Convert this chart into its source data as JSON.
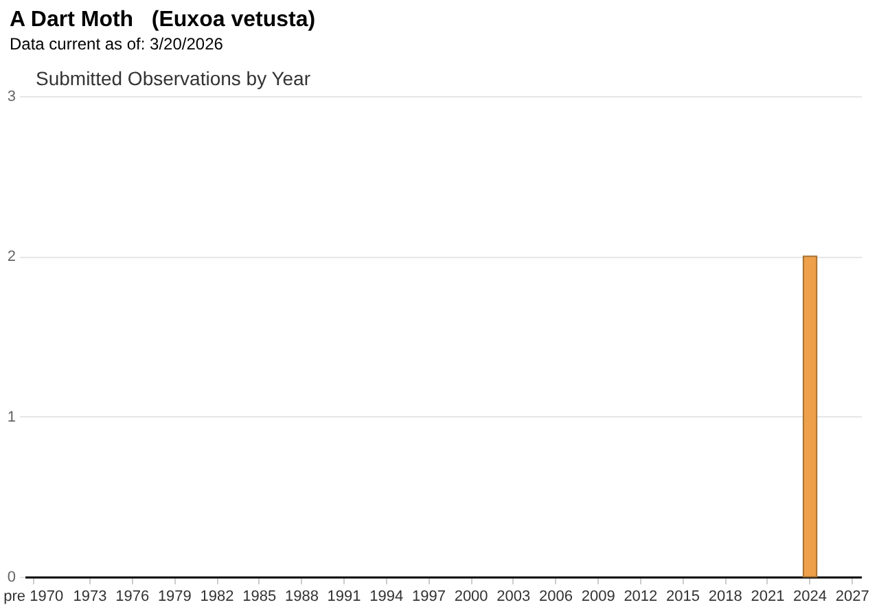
{
  "chart_data": {
    "type": "bar",
    "title": "A Dart Moth   (Euxoa vetusta)",
    "subtitle": "Data current as of: 3/20/2026",
    "annotations": [
      "Submitted Observations by Year"
    ],
    "categories": [
      "pre 1970",
      null,
      null,
      null,
      "1973",
      null,
      null,
      "1976",
      null,
      null,
      "1979",
      null,
      null,
      "1982",
      null,
      null,
      "1985",
      null,
      null,
      "1988",
      null,
      null,
      "1991",
      null,
      null,
      "1994",
      null,
      null,
      "1997",
      null,
      null,
      "2000",
      null,
      null,
      "2003",
      null,
      null,
      "2006",
      null,
      null,
      "2009",
      null,
      null,
      "2012",
      null,
      null,
      "2015",
      null,
      null,
      "2018",
      null,
      null,
      "2021",
      null,
      null,
      "2024",
      null,
      null,
      "2027"
    ],
    "values": [
      0,
      0,
      0,
      0,
      0,
      0,
      0,
      0,
      0,
      0,
      0,
      0,
      0,
      0,
      0,
      0,
      0,
      0,
      0,
      0,
      0,
      0,
      0,
      0,
      0,
      0,
      0,
      0,
      0,
      0,
      0,
      0,
      0,
      0,
      0,
      0,
      0,
      0,
      0,
      0,
      0,
      0,
      0,
      0,
      0,
      0,
      0,
      0,
      0,
      0,
      0,
      0,
      0,
      0,
      0,
      2,
      0,
      0,
      0
    ],
    "color": "#eea04a",
    "ylim": [
      0,
      3
    ],
    "yticks": [
      0,
      1,
      2,
      3
    ],
    "grid": "y"
  }
}
